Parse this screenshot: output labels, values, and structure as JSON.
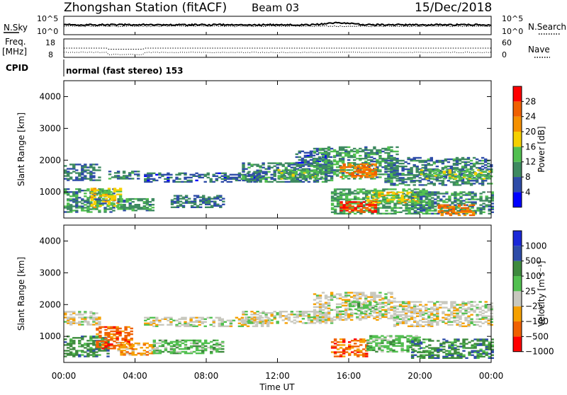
{
  "header": {
    "title": "Zhongshan Station (fitACF)",
    "beam": "Beam 03",
    "date": "15/Dec/2018"
  },
  "noise_panel": {
    "left_label": "N.Sky",
    "left_ticks": [
      "10^5",
      "10^0"
    ],
    "right_label": "N.Search",
    "right_ticks": [
      "10^5",
      "10^0"
    ]
  },
  "freq_panel": {
    "left_label_top": "Freq.",
    "left_label_unit": "[MHz]",
    "left_ticks": [
      "18",
      "8"
    ],
    "right_label": "Nave",
    "right_ticks": [
      "60",
      "0"
    ]
  },
  "cpid": {
    "label": "CPID",
    "value": "normal (fast stereo) 153"
  },
  "colors": {
    "power": [
      "#0000ff",
      "#2e4ca8",
      "#3e8a60",
      "#52c050",
      "#f5d000",
      "#f59000",
      "#f06000",
      "#ff0000"
    ],
    "velocity": [
      "#ff0000",
      "#f06000",
      "#f5a000",
      "#c8c8be",
      "#52c050",
      "#3e8a3e",
      "#2e4ca8",
      "#1a28d8"
    ]
  },
  "chart_data": [
    {
      "type": "heatmap",
      "name": "power",
      "ylabel": "Slant Range [km]",
      "y_ticks": [
        "1000",
        "2000",
        "3000",
        "4000"
      ],
      "ylim": [
        180,
        4500
      ],
      "x_ticks": [
        "00:00",
        "04:00",
        "08:00",
        "12:00",
        "16:00",
        "20:00",
        "00:00"
      ],
      "xlim_hours": [
        0,
        24
      ],
      "colorbar": {
        "label": "Power [dB]",
        "ticks": [
          "4",
          "8",
          "12",
          "16",
          "20",
          "24",
          "28"
        ],
        "range": [
          0,
          32
        ]
      },
      "regions": [
        {
          "t0": 0.0,
          "t1": 2.0,
          "r0": 1350,
          "r1": 1850,
          "v": 8
        },
        {
          "t0": 0.0,
          "t1": 2.8,
          "r0": 350,
          "r1": 1100,
          "v": 10
        },
        {
          "t0": 1.5,
          "t1": 3.2,
          "r0": 500,
          "r1": 1100,
          "v": 17
        },
        {
          "t0": 2.5,
          "t1": 4.2,
          "r0": 1400,
          "r1": 1650,
          "v": 9
        },
        {
          "t0": 3.0,
          "t1": 5.0,
          "r0": 400,
          "r1": 800,
          "v": 11
        },
        {
          "t0": 4.5,
          "t1": 11.0,
          "r0": 1300,
          "r1": 1600,
          "v": 7
        },
        {
          "t0": 6.0,
          "t1": 9.0,
          "r0": 500,
          "r1": 900,
          "v": 8
        },
        {
          "t0": 10.0,
          "t1": 15.0,
          "r0": 1300,
          "r1": 1900,
          "v": 9
        },
        {
          "t0": 12.0,
          "t1": 14.5,
          "r0": 1400,
          "r1": 1700,
          "v": 13
        },
        {
          "t0": 13.0,
          "t1": 15.0,
          "r0": 1900,
          "r1": 2300,
          "v": 7
        },
        {
          "t0": 14.0,
          "t1": 18.8,
          "r0": 1400,
          "r1": 2400,
          "v": 11
        },
        {
          "t0": 15.5,
          "t1": 17.5,
          "r0": 1450,
          "r1": 1900,
          "v": 24
        },
        {
          "t0": 15.0,
          "t1": 20.5,
          "r0": 300,
          "r1": 1100,
          "v": 12
        },
        {
          "t0": 15.5,
          "t1": 17.5,
          "r0": 350,
          "r1": 700,
          "v": 27
        },
        {
          "t0": 17.0,
          "t1": 20.0,
          "r0": 650,
          "r1": 1000,
          "v": 18
        },
        {
          "t0": 18.0,
          "t1": 24.0,
          "r0": 1200,
          "r1": 2100,
          "v": 9
        },
        {
          "t0": 20.0,
          "t1": 24.0,
          "r0": 1400,
          "r1": 1700,
          "v": 14
        },
        {
          "t0": 19.5,
          "t1": 24.0,
          "r0": 300,
          "r1": 1000,
          "v": 10
        },
        {
          "t0": 21.0,
          "t1": 23.0,
          "r0": 250,
          "r1": 600,
          "v": 24
        }
      ]
    },
    {
      "type": "heatmap",
      "name": "velocity",
      "ylabel": "Slant Range [km]",
      "y_ticks": [
        "1000",
        "2000",
        "3000",
        "4000"
      ],
      "ylim": [
        180,
        4500
      ],
      "x_ticks": [
        "00:00",
        "04:00",
        "08:00",
        "12:00",
        "16:00",
        "20:00",
        "00:00"
      ],
      "xlabel": "Time UT",
      "xlim_hours": [
        0,
        24
      ],
      "colorbar": {
        "label": "Velocity [m s⁻¹]",
        "ticks": [
          "1000",
          "500",
          "100",
          "25",
          "−25",
          "−100",
          "−500",
          "−1000"
        ]
      },
      "regions": [
        {
          "t0": 0.0,
          "t1": 2.0,
          "r0": 1350,
          "r1": 1800,
          "v": 3
        },
        {
          "t0": 0.0,
          "t1": 2.5,
          "r0": 350,
          "r1": 1000,
          "v": 5
        },
        {
          "t0": 1.8,
          "t1": 3.8,
          "r0": 600,
          "r1": 1300,
          "v": 1
        },
        {
          "t0": 3.0,
          "t1": 5.0,
          "r0": 400,
          "r1": 800,
          "v": 2
        },
        {
          "t0": 4.5,
          "t1": 11.5,
          "r0": 1300,
          "r1": 1600,
          "v": 3
        },
        {
          "t0": 5.0,
          "t1": 9.0,
          "r0": 450,
          "r1": 900,
          "v": 4
        },
        {
          "t0": 10.0,
          "t1": 15.0,
          "r0": 1400,
          "r1": 1800,
          "v": 3
        },
        {
          "t0": 14.0,
          "t1": 18.5,
          "r0": 1500,
          "r1": 2400,
          "v": 3
        },
        {
          "t0": 16.0,
          "t1": 17.5,
          "r0": 1700,
          "r1": 2100,
          "v": 4
        },
        {
          "t0": 15.0,
          "t1": 17.0,
          "r0": 350,
          "r1": 900,
          "v": 1
        },
        {
          "t0": 17.0,
          "t1": 20.0,
          "r0": 500,
          "r1": 1000,
          "v": 4
        },
        {
          "t0": 18.5,
          "t1": 24.0,
          "r0": 1300,
          "r1": 2100,
          "v": 3
        },
        {
          "t0": 19.5,
          "t1": 24.0,
          "r0": 300,
          "r1": 900,
          "v": 5
        }
      ]
    }
  ],
  "ui": {
    "noise_sky_series": "N.Sky",
    "freq_series": "Freq"
  }
}
